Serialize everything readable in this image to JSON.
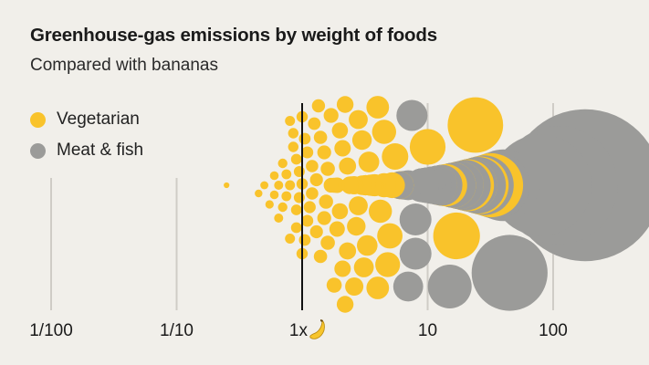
{
  "colors": {
    "background": "#f1efea",
    "vegetarian": "#f9c32b",
    "meat_fish": "#9b9b99",
    "gridline": "#cfccc6",
    "baseline": "#111111"
  },
  "chart_data": {
    "type": "scatter",
    "title": "Greenhouse-gas emissions by weight of foods",
    "subtitle": "Compared with bananas",
    "xscale": "log",
    "xlim": [
      0.01,
      200
    ],
    "baseline_value": 1,
    "xticks": [
      {
        "value": 0.01,
        "label": "1/100"
      },
      {
        "value": 0.1,
        "label": "1/10"
      },
      {
        "value": 1,
        "label": "1x"
      },
      {
        "value": 10,
        "label": "10"
      },
      {
        "value": 100,
        "label": "100"
      }
    ],
    "baseline_icon": "banana-icon",
    "legend": [
      {
        "name": "Vegetarian",
        "color": "#f9c32b"
      },
      {
        "name": "Meat & fish",
        "color": "#9b9b99"
      }
    ],
    "size_encoding": "circle area proportional to emissions multiple",
    "series": [
      {
        "name": "Vegetarian",
        "ratios": [
          0.25,
          0.45,
          0.5,
          0.55,
          0.6,
          0.6,
          0.65,
          0.65,
          0.7,
          0.7,
          0.75,
          0.75,
          0.8,
          0.8,
          0.8,
          0.85,
          0.85,
          0.9,
          0.9,
          0.9,
          0.95,
          0.95,
          1,
          1,
          1,
          1.05,
          1.05,
          1.1,
          1.1,
          1.15,
          1.2,
          1.2,
          1.25,
          1.3,
          1.3,
          1.35,
          1.4,
          1.4,
          1.5,
          1.5,
          1.55,
          1.6,
          1.6,
          1.7,
          1.7,
          1.8,
          1.8,
          1.9,
          1.9,
          2,
          2,
          2.1,
          2.1,
          2.2,
          2.2,
          2.3,
          2.3,
          2.4,
          2.4,
          2.5,
          2.6,
          2.6,
          2.7,
          2.8,
          2.8,
          3,
          3,
          3.1,
          3.2,
          3.2,
          3.3,
          3.4,
          3.5,
          3.6,
          3.7,
          3.8,
          4,
          4,
          4.2,
          4.5,
          4.5,
          4.8,
          5,
          5.2,
          5.5,
          6,
          6,
          10,
          12,
          13,
          14,
          16,
          16,
          17,
          18,
          20,
          20,
          21,
          22,
          24,
          25,
          26,
          32
        ]
      },
      {
        "name": "Meat & fish",
        "ratios": [
          6,
          6.5,
          7,
          7,
          7.5,
          8,
          8,
          9,
          9,
          9.5,
          10,
          10,
          11,
          11,
          12,
          12,
          13,
          15,
          16,
          18,
          20,
          22,
          25,
          28,
          35,
          40,
          45,
          80,
          110,
          180
        ]
      }
    ]
  }
}
